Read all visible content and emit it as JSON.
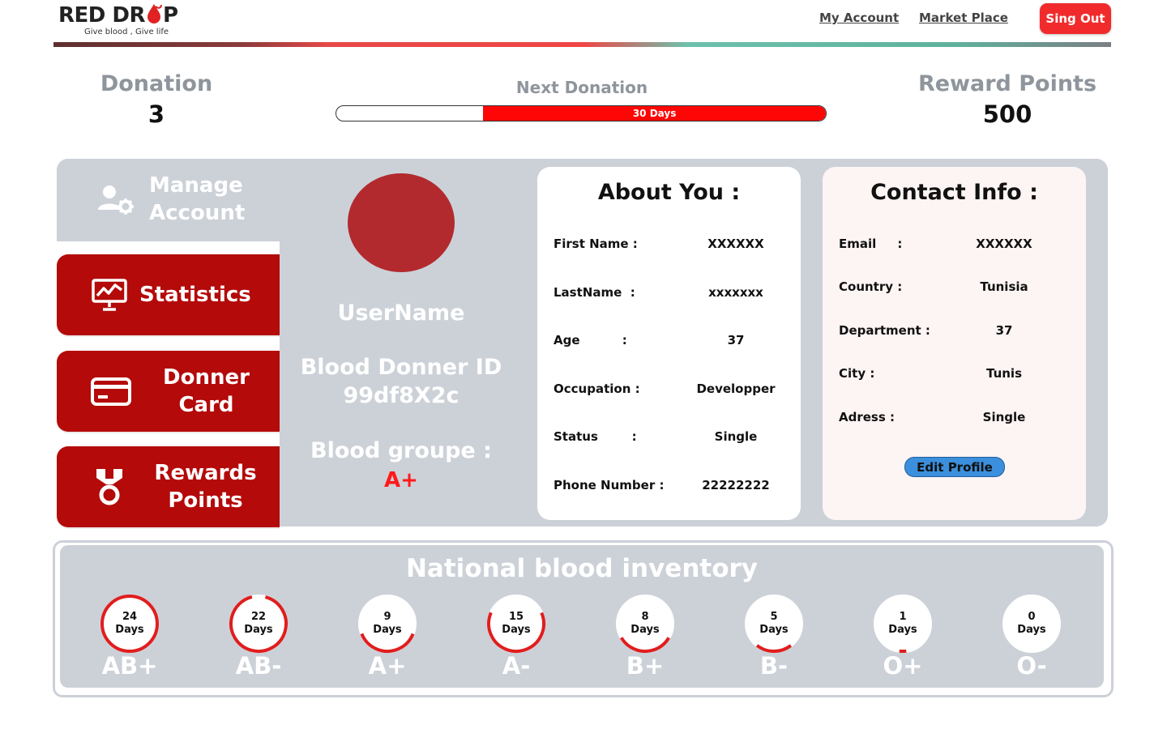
{
  "brand": {
    "name_before": "RED DR",
    "name_after": "P",
    "tagline": "Give blood , Give life"
  },
  "nav": {
    "my_account": "My Account",
    "market_place": "Market Place",
    "sign_out": "Sing Out"
  },
  "stats": {
    "donation_label": "Donation",
    "donation_value": "3",
    "next_label": "Next Donation",
    "next_value": "30 Days",
    "next_progress": 0.7,
    "reward_label": "Reward Points",
    "reward_value": "500"
  },
  "sidebar": {
    "manage_line1": "Manage",
    "manage_line2": "Account",
    "statistics": "Statistics",
    "donner_line1": "Donner",
    "donner_line2": "Card",
    "rewards_line1": "Rewards",
    "rewards_line2": "Points"
  },
  "profile": {
    "username": "UserName",
    "id_label": "Blood Donner ID",
    "id_value": "99df8X2c",
    "blood_label": "Blood groupe :",
    "blood_value": "A+"
  },
  "about": {
    "title": "About You :",
    "rows": [
      {
        "label": "First Name :",
        "value": "XXXXXX"
      },
      {
        "label": "LastName  :",
        "value": "xxxxxxx"
      },
      {
        "label": "Age          :",
        "value": "37"
      },
      {
        "label": "Occupation :",
        "value": "Developper"
      },
      {
        "label": "Status        :",
        "value": "Single"
      },
      {
        "label": "Phone Number :",
        "value": "22222222"
      }
    ]
  },
  "contact": {
    "title": "Contact Info :",
    "rows": [
      {
        "label": "Email     :",
        "value": "XXXXXX"
      },
      {
        "label": "Country :",
        "value": "Tunisia"
      },
      {
        "label": "Department :",
        "value": "37"
      },
      {
        "label": "City :",
        "value": "Tunis"
      },
      {
        "label": "Adress :",
        "value": "Single"
      }
    ],
    "edit_button": "Edit Profile"
  },
  "inventory": {
    "title": "National blood inventory",
    "items": [
      {
        "type": "AB+",
        "days": "24",
        "unit": "Days",
        "level": 1.0
      },
      {
        "type": "AB-",
        "days": "22",
        "unit": "Days",
        "level": 0.92
      },
      {
        "type": "A+",
        "days": "9",
        "unit": "Days",
        "level": 0.38
      },
      {
        "type": "A-",
        "days": "15",
        "unit": "Days",
        "level": 0.63
      },
      {
        "type": "B+",
        "days": "8",
        "unit": "Days",
        "level": 0.33
      },
      {
        "type": "B-",
        "days": "5",
        "unit": "Days",
        "level": 0.21
      },
      {
        "type": "O+",
        "days": "1",
        "unit": "Days",
        "level": 0.04
      },
      {
        "type": "O-",
        "days": "0",
        "unit": "Days",
        "level": 0.0
      }
    ]
  },
  "colors": {
    "accent_red": "#b40a0a",
    "bright_red": "#ff0606",
    "panel_gray": "#ccd1d8",
    "edit_blue": "#3b8fdc"
  }
}
